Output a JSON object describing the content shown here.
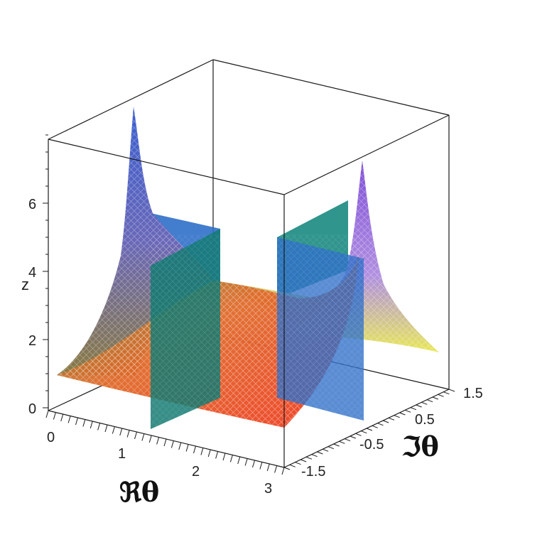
{
  "chart_data": {
    "type": "surface3d",
    "title": "",
    "xlabel": "ℜθ",
    "ylabel": "ℑθ",
    "zlabel": "z",
    "x_ticks": [
      "0",
      "1",
      "2",
      "3"
    ],
    "y_ticks": [
      "-1.5",
      "-0.5",
      "0.5",
      "1.5"
    ],
    "z_ticks": [
      "0",
      "2",
      "4",
      "6"
    ],
    "xlim": [
      0,
      3.14
    ],
    "ylim": [
      -1.5,
      1.5
    ],
    "zlim": [
      0,
      7.5
    ],
    "planes": [
      {
        "orientation": "Re = const",
        "value": 0.8,
        "color": "#2f6fc8"
      },
      {
        "orientation": "Re = const",
        "value": 2.3,
        "color": "#2f6fc8"
      }
    ],
    "surface": {
      "description": "peaks at Re=0 and Re=pi near Im=0; minimum ~1 along the middle",
      "peak_height": 7.5,
      "base_height": 1.0,
      "colormap": [
        "#e8ec50",
        "#f07020",
        "#f03020",
        "#3050c0",
        "#9060d0"
      ]
    }
  }
}
